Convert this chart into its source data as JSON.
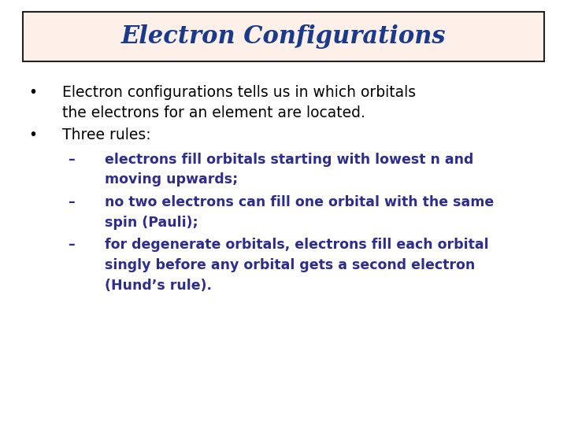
{
  "title": "Electron Configurations",
  "title_color": "#1a3a8c",
  "title_bg_color": "#fdf0e8",
  "title_border_color": "#222222",
  "title_fontsize": 22,
  "bg_color": "#ffffff",
  "bullet_color": "#000000",
  "bullet_fontsize": 13.5,
  "sub_color": "#2d2d8c",
  "sub_fontsize": 12.5,
  "bullet1_line1": "Electron configurations tells us in which orbitals",
  "bullet1_line2": "the electrons for an element are located.",
  "bullet2": "Three rules:",
  "sub1_line1": "electrons fill orbitals starting with lowest n and",
  "sub1_line2": "moving upwards;",
  "sub2_line1": "no two electrons can fill one orbital with the same",
  "sub2_line2": "spin (Pauli);",
  "sub3_line1": "for degenerate orbitals, electrons fill each orbital",
  "sub3_line2": "singly before any orbital gets a second electron",
  "sub3_line3": "(Hund’s rule)."
}
